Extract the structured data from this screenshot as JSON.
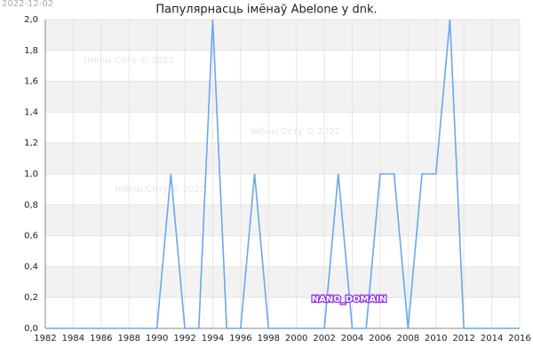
{
  "chart_data": {
    "type": "line",
    "date": "2022-12-02",
    "title": "Папулярнасць імёнаў Abelone у dnk.",
    "watermarks": [
      "Імёны.Сёту © 2022",
      "Імёны.Сёту © 2022",
      "Імёны.Сёту © 2022"
    ],
    "badge": "NANO_DOMAIN",
    "x": [
      1982,
      1983,
      1984,
      1985,
      1986,
      1987,
      1988,
      1989,
      1990,
      1991,
      1992,
      1993,
      1994,
      1995,
      1996,
      1997,
      1998,
      1999,
      2000,
      2001,
      2002,
      2003,
      2004,
      2005,
      2006,
      2007,
      2008,
      2009,
      2010,
      2011,
      2012,
      2013,
      2014,
      2015,
      2016
    ],
    "series": [
      {
        "color": "#6aa8e8",
        "values": [
          0,
          0,
          0,
          0,
          0,
          0,
          0,
          0,
          0,
          1,
          0,
          0,
          2,
          0,
          0,
          1,
          0,
          0,
          0,
          0,
          0,
          1,
          0,
          0,
          1,
          1,
          0,
          1,
          1,
          2,
          0,
          0,
          0,
          0,
          0
        ]
      }
    ],
    "xlim": [
      1982,
      2016
    ],
    "xticks": [
      1982,
      1984,
      1986,
      1988,
      1990,
      1992,
      1994,
      1996,
      1998,
      2000,
      2002,
      2004,
      2006,
      2008,
      2010,
      2012,
      2014,
      2016
    ],
    "ylim": [
      0,
      2
    ],
    "yticks": [
      {
        "value": 0,
        "label": "0,0"
      },
      {
        "value": 0.2,
        "label": "0,2"
      },
      {
        "value": 0.4,
        "label": "0,4"
      },
      {
        "value": 0.6,
        "label": "0,6"
      },
      {
        "value": 0.8,
        "label": "0,8"
      },
      {
        "value": 1,
        "label": "1,0"
      },
      {
        "value": 1.2,
        "label": "1,2"
      },
      {
        "value": 1.4,
        "label": "1,4"
      },
      {
        "value": 1.6,
        "label": "1,6"
      },
      {
        "value": 1.8,
        "label": "1,8"
      },
      {
        "value": 2,
        "label": "2,0"
      }
    ],
    "grid": true
  }
}
